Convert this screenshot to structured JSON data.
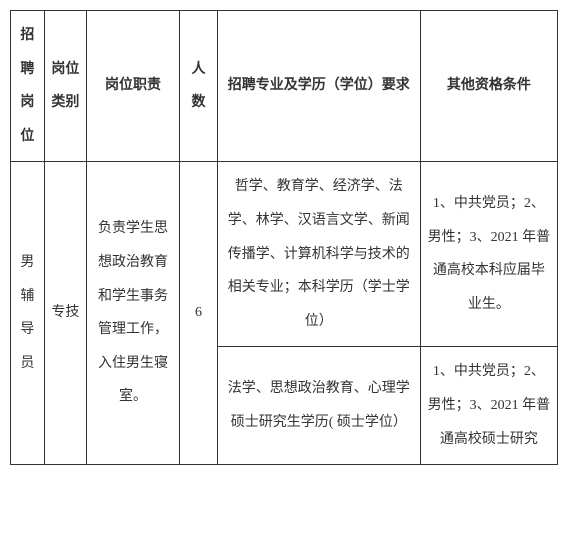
{
  "headers": {
    "col1": "招聘岗位",
    "col2": "岗位类别",
    "col3": "岗位职责",
    "col4": "人数",
    "col5": "招聘专业及学历（学位）要求",
    "col6": "其他资格条件"
  },
  "row1": {
    "position": "男辅导员",
    "category": "专技",
    "duty": "负责学生思想政治教育和学生事务管理工作，入住男生寝室。",
    "count": "6",
    "major_a": "哲学、教育学、经济学、法学、林学、汉语言文学、新闻传播学、计算机科学与技术的相关专业；本科学历（学士学位）",
    "qual_a": "1、中共党员；2、男性；3、2021 年普通高校本科应届毕业生。",
    "major_b": "法学、思想政治教育、心理学  硕士研究生学历( 硕士学位）",
    "qual_b": "1、中共党员；2、男性；3、2021 年普通高校硕士研究"
  }
}
